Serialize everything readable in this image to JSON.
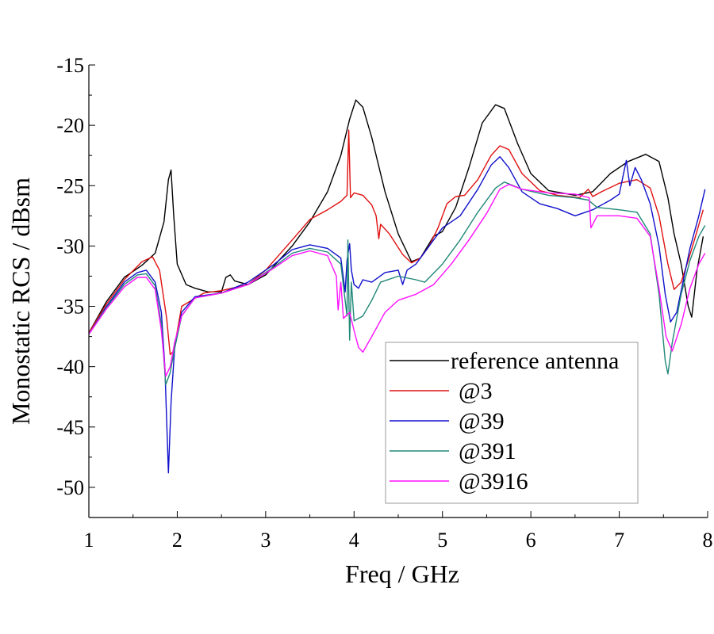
{
  "chart_data": {
    "type": "line",
    "xlabel": "Freq / GHz",
    "ylabel": "Monostatic RCS / dBsm",
    "xlim": [
      1,
      8
    ],
    "ylim": [
      -52.5,
      -15
    ],
    "xticks": [
      1,
      2,
      3,
      4,
      5,
      6,
      7,
      8
    ],
    "yticks": [
      -15,
      -20,
      -25,
      -30,
      -35,
      -40,
      -45,
      -50
    ],
    "grid": false,
    "legend_position": "bottom-right",
    "series": [
      {
        "name": "reference antenna",
        "color": "#000000",
        "points": [
          [
            1.0,
            -37.2
          ],
          [
            1.2,
            -34.6
          ],
          [
            1.4,
            -32.6
          ],
          [
            1.6,
            -31.6
          ],
          [
            1.75,
            -30.6
          ],
          [
            1.85,
            -28.0
          ],
          [
            1.9,
            -24.5
          ],
          [
            1.93,
            -23.7
          ],
          [
            1.96,
            -27.5
          ],
          [
            2.0,
            -31.5
          ],
          [
            2.1,
            -33.2
          ],
          [
            2.2,
            -33.5
          ],
          [
            2.35,
            -33.8
          ],
          [
            2.5,
            -33.8
          ],
          [
            2.55,
            -32.6
          ],
          [
            2.6,
            -32.4
          ],
          [
            2.65,
            -32.9
          ],
          [
            2.8,
            -33.2
          ],
          [
            3.0,
            -32.4
          ],
          [
            3.3,
            -30.0
          ],
          [
            3.5,
            -28.0
          ],
          [
            3.7,
            -25.5
          ],
          [
            3.85,
            -22.5
          ],
          [
            3.95,
            -19.5
          ],
          [
            4.02,
            -17.9
          ],
          [
            4.1,
            -18.5
          ],
          [
            4.2,
            -21.0
          ],
          [
            4.35,
            -25.5
          ],
          [
            4.5,
            -29.0
          ],
          [
            4.65,
            -31.3
          ],
          [
            4.75,
            -31.0
          ],
          [
            4.9,
            -29.2
          ],
          [
            5.0,
            -28.8
          ],
          [
            5.15,
            -26.8
          ],
          [
            5.3,
            -23.5
          ],
          [
            5.45,
            -19.8
          ],
          [
            5.6,
            -18.3
          ],
          [
            5.7,
            -18.6
          ],
          [
            5.85,
            -21.5
          ],
          [
            6.0,
            -24.0
          ],
          [
            6.2,
            -25.4
          ],
          [
            6.5,
            -25.8
          ],
          [
            6.7,
            -25.5
          ],
          [
            6.9,
            -24.0
          ],
          [
            7.1,
            -23.0
          ],
          [
            7.3,
            -22.4
          ],
          [
            7.45,
            -23.0
          ],
          [
            7.55,
            -26.0
          ],
          [
            7.62,
            -29.0
          ],
          [
            7.7,
            -31.5
          ],
          [
            7.78,
            -35.0
          ],
          [
            7.82,
            -35.9
          ],
          [
            7.88,
            -32.0
          ],
          [
            7.95,
            -29.2
          ]
        ]
      },
      {
        "name": "@3",
        "color": "#e01010",
        "points": [
          [
            1.0,
            -37.2
          ],
          [
            1.2,
            -34.8
          ],
          [
            1.4,
            -32.8
          ],
          [
            1.6,
            -31.3
          ],
          [
            1.72,
            -30.9
          ],
          [
            1.8,
            -32.0
          ],
          [
            1.88,
            -36.0
          ],
          [
            1.92,
            -39.0
          ],
          [
            1.96,
            -38.7
          ],
          [
            2.05,
            -35.0
          ],
          [
            2.3,
            -33.9
          ],
          [
            2.5,
            -33.7
          ],
          [
            2.8,
            -33.2
          ],
          [
            3.0,
            -32.0
          ],
          [
            3.3,
            -29.5
          ],
          [
            3.5,
            -27.8
          ],
          [
            3.7,
            -27.0
          ],
          [
            3.85,
            -26.3
          ],
          [
            3.92,
            -25.8
          ],
          [
            3.94,
            -20.4
          ],
          [
            3.96,
            -26.0
          ],
          [
            4.0,
            -25.6
          ],
          [
            4.1,
            -25.8
          ],
          [
            4.2,
            -26.6
          ],
          [
            4.25,
            -27.5
          ],
          [
            4.28,
            -29.4
          ],
          [
            4.3,
            -28.2
          ],
          [
            4.4,
            -29.0
          ],
          [
            4.55,
            -30.7
          ],
          [
            4.65,
            -31.4
          ],
          [
            4.75,
            -31.0
          ],
          [
            4.85,
            -30.0
          ],
          [
            4.95,
            -28.5
          ],
          [
            5.05,
            -26.5
          ],
          [
            5.15,
            -25.9
          ],
          [
            5.25,
            -25.8
          ],
          [
            5.4,
            -24.5
          ],
          [
            5.55,
            -22.5
          ],
          [
            5.65,
            -21.7
          ],
          [
            5.75,
            -22.0
          ],
          [
            5.9,
            -24.0
          ],
          [
            6.1,
            -25.4
          ],
          [
            6.3,
            -25.8
          ],
          [
            6.55,
            -26.0
          ],
          [
            6.65,
            -25.3
          ],
          [
            6.7,
            -25.9
          ],
          [
            6.8,
            -25.5
          ],
          [
            7.0,
            -24.8
          ],
          [
            7.2,
            -24.5
          ],
          [
            7.35,
            -25.2
          ],
          [
            7.45,
            -27.5
          ],
          [
            7.55,
            -31.5
          ],
          [
            7.62,
            -33.6
          ],
          [
            7.7,
            -33.0
          ],
          [
            7.78,
            -31.2
          ],
          [
            7.85,
            -29.5
          ],
          [
            7.95,
            -27.0
          ]
        ]
      },
      {
        "name": "@39",
        "color": "#1010cc",
        "points": [
          [
            1.0,
            -37.3
          ],
          [
            1.2,
            -35.0
          ],
          [
            1.4,
            -33.0
          ],
          [
            1.55,
            -32.2
          ],
          [
            1.65,
            -32.0
          ],
          [
            1.75,
            -33.0
          ],
          [
            1.82,
            -35.5
          ],
          [
            1.86,
            -40.0
          ],
          [
            1.9,
            -48.8
          ],
          [
            1.93,
            -43.0
          ],
          [
            1.97,
            -38.5
          ],
          [
            2.05,
            -35.5
          ],
          [
            2.2,
            -34.2
          ],
          [
            2.5,
            -33.9
          ],
          [
            2.8,
            -33.0
          ],
          [
            3.1,
            -31.5
          ],
          [
            3.3,
            -30.3
          ],
          [
            3.5,
            -29.9
          ],
          [
            3.7,
            -30.2
          ],
          [
            3.85,
            -31.0
          ],
          [
            3.9,
            -33.8
          ],
          [
            3.92,
            -31.2
          ],
          [
            3.95,
            -29.8
          ],
          [
            3.97,
            -32.0
          ],
          [
            4.0,
            -33.2
          ],
          [
            4.05,
            -33.5
          ],
          [
            4.1,
            -32.8
          ],
          [
            4.2,
            -33.0
          ],
          [
            4.35,
            -32.2
          ],
          [
            4.5,
            -32.0
          ],
          [
            4.55,
            -33.2
          ],
          [
            4.6,
            -32.0
          ],
          [
            4.7,
            -31.5
          ],
          [
            4.85,
            -30.0
          ],
          [
            5.0,
            -28.5
          ],
          [
            5.2,
            -27.5
          ],
          [
            5.4,
            -25.3
          ],
          [
            5.55,
            -23.3
          ],
          [
            5.65,
            -22.6
          ],
          [
            5.75,
            -23.5
          ],
          [
            5.9,
            -25.5
          ],
          [
            6.1,
            -26.5
          ],
          [
            6.3,
            -26.9
          ],
          [
            6.5,
            -27.5
          ],
          [
            6.7,
            -27.0
          ],
          [
            6.9,
            -26.2
          ],
          [
            7.0,
            -25.7
          ],
          [
            7.08,
            -22.9
          ],
          [
            7.12,
            -25.0
          ],
          [
            7.18,
            -23.5
          ],
          [
            7.25,
            -24.5
          ],
          [
            7.35,
            -26.5
          ],
          [
            7.45,
            -30.0
          ],
          [
            7.52,
            -34.0
          ],
          [
            7.58,
            -36.3
          ],
          [
            7.65,
            -35.5
          ],
          [
            7.72,
            -33.0
          ],
          [
            7.8,
            -30.2
          ],
          [
            7.9,
            -27.5
          ],
          [
            7.97,
            -25.3
          ]
        ]
      },
      {
        "name": "@391",
        "color": "#208878",
        "points": [
          [
            1.0,
            -37.3
          ],
          [
            1.2,
            -35.1
          ],
          [
            1.4,
            -33.2
          ],
          [
            1.55,
            -32.4
          ],
          [
            1.65,
            -32.3
          ],
          [
            1.75,
            -33.3
          ],
          [
            1.82,
            -36.5
          ],
          [
            1.87,
            -41.5
          ],
          [
            1.92,
            -40.5
          ],
          [
            1.97,
            -38.5
          ],
          [
            2.05,
            -35.8
          ],
          [
            2.2,
            -34.3
          ],
          [
            2.5,
            -33.9
          ],
          [
            2.8,
            -33.2
          ],
          [
            3.1,
            -31.7
          ],
          [
            3.3,
            -30.6
          ],
          [
            3.5,
            -30.2
          ],
          [
            3.7,
            -30.5
          ],
          [
            3.85,
            -31.5
          ],
          [
            3.92,
            -35.8
          ],
          [
            3.93,
            -29.5
          ],
          [
            3.95,
            -37.8
          ],
          [
            3.97,
            -33.0
          ],
          [
            4.0,
            -36.2
          ],
          [
            4.1,
            -35.8
          ],
          [
            4.2,
            -34.5
          ],
          [
            4.3,
            -33.0
          ],
          [
            4.5,
            -32.5
          ],
          [
            4.7,
            -32.8
          ],
          [
            4.8,
            -33.0
          ],
          [
            5.0,
            -31.5
          ],
          [
            5.2,
            -29.5
          ],
          [
            5.4,
            -27.2
          ],
          [
            5.6,
            -25.2
          ],
          [
            5.7,
            -24.7
          ],
          [
            5.9,
            -25.3
          ],
          [
            6.2,
            -25.8
          ],
          [
            6.5,
            -26.0
          ],
          [
            6.65,
            -26.2
          ],
          [
            6.75,
            -26.8
          ],
          [
            7.0,
            -27.0
          ],
          [
            7.2,
            -27.2
          ],
          [
            7.35,
            -29.0
          ],
          [
            7.45,
            -34.0
          ],
          [
            7.52,
            -39.5
          ],
          [
            7.55,
            -40.6
          ],
          [
            7.6,
            -38.0
          ],
          [
            7.7,
            -34.0
          ],
          [
            7.8,
            -31.2
          ],
          [
            7.9,
            -29.2
          ],
          [
            7.97,
            -28.3
          ]
        ]
      },
      {
        "name": "@3916",
        "color": "#ff10ff",
        "points": [
          [
            1.0,
            -37.3
          ],
          [
            1.2,
            -35.2
          ],
          [
            1.4,
            -33.4
          ],
          [
            1.55,
            -32.6
          ],
          [
            1.65,
            -32.6
          ],
          [
            1.75,
            -33.6
          ],
          [
            1.82,
            -37.0
          ],
          [
            1.87,
            -40.8
          ],
          [
            1.92,
            -40.0
          ],
          [
            1.97,
            -38.0
          ],
          [
            2.05,
            -35.8
          ],
          [
            2.2,
            -34.3
          ],
          [
            2.5,
            -33.9
          ],
          [
            2.8,
            -33.2
          ],
          [
            3.1,
            -31.8
          ],
          [
            3.3,
            -30.8
          ],
          [
            3.5,
            -30.4
          ],
          [
            3.7,
            -30.8
          ],
          [
            3.8,
            -32.5
          ],
          [
            3.82,
            -35.3
          ],
          [
            3.85,
            -33.0
          ],
          [
            3.88,
            -36.0
          ],
          [
            3.95,
            -35.5
          ],
          [
            4.0,
            -37.0
          ],
          [
            4.05,
            -38.4
          ],
          [
            4.1,
            -38.8
          ],
          [
            4.2,
            -37.5
          ],
          [
            4.35,
            -35.5
          ],
          [
            4.5,
            -34.5
          ],
          [
            4.7,
            -34.0
          ],
          [
            4.9,
            -33.2
          ],
          [
            5.1,
            -31.5
          ],
          [
            5.3,
            -29.5
          ],
          [
            5.5,
            -27.3
          ],
          [
            5.65,
            -25.3
          ],
          [
            5.75,
            -24.9
          ],
          [
            5.9,
            -25.3
          ],
          [
            6.2,
            -25.6
          ],
          [
            6.5,
            -25.7
          ],
          [
            6.66,
            -26.0
          ],
          [
            6.68,
            -28.5
          ],
          [
            6.75,
            -27.5
          ],
          [
            7.0,
            -27.5
          ],
          [
            7.2,
            -27.7
          ],
          [
            7.35,
            -29.2
          ],
          [
            7.45,
            -33.5
          ],
          [
            7.53,
            -37.5
          ],
          [
            7.6,
            -38.7
          ],
          [
            7.7,
            -36.5
          ],
          [
            7.8,
            -33.5
          ],
          [
            7.9,
            -31.5
          ],
          [
            7.97,
            -30.6
          ]
        ]
      }
    ]
  }
}
